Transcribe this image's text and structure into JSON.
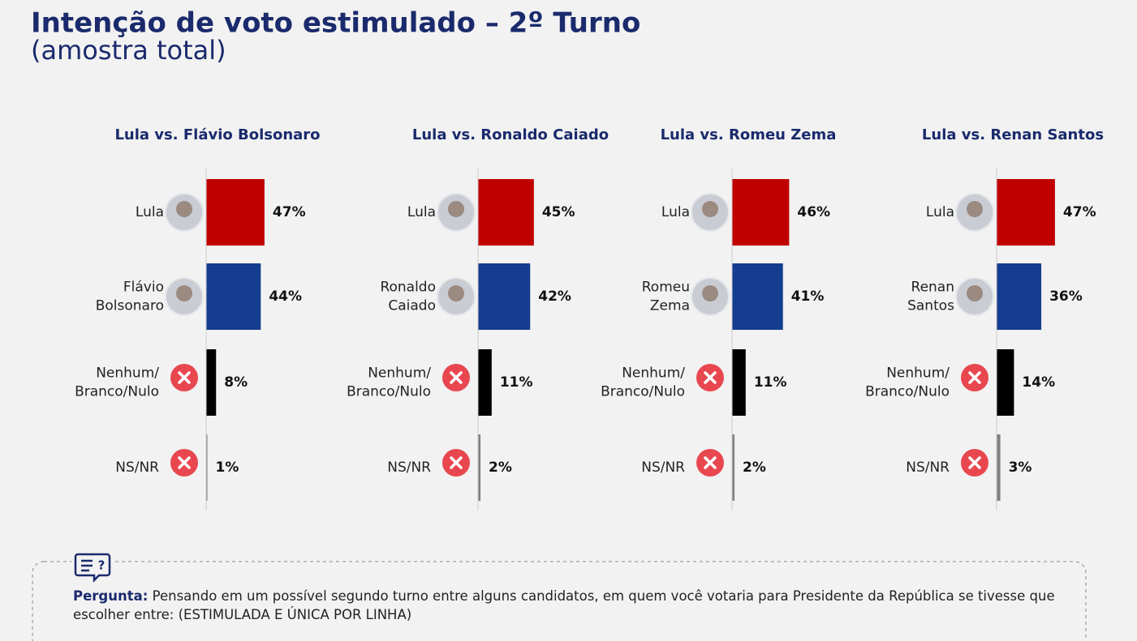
{
  "title": "Intenção de voto estimulado – 2º Turno",
  "subtitle": "(amostra total)",
  "question": {
    "label": "Pergunta:",
    "text": "Pensando em um possível segundo turno entre alguns candidatos, em quem você votaria para Presidente da República se tivesse que escolher entre: (ESTIMULADA E ÚNICA POR LINHA)"
  },
  "chart_data": [
    {
      "type": "bar",
      "orientation": "horizontal",
      "title": "Lula vs. Flávio Bolsonaro",
      "categories": [
        [
          "Lula"
        ],
        [
          "Flávio",
          "Bolsonaro"
        ],
        [
          "Nenhum/",
          "Branco/Nulo"
        ],
        [
          "NS/NR"
        ]
      ],
      "values": [
        47,
        44,
        8,
        1
      ],
      "value_labels": [
        "47%",
        "44%",
        "8%",
        "1%"
      ],
      "colors": [
        "#c00000",
        "#143d8f",
        "#000000",
        "#808080"
      ],
      "xlim": [
        0,
        100
      ]
    },
    {
      "type": "bar",
      "orientation": "horizontal",
      "title": "Lula vs. Ronaldo Caiado",
      "categories": [
        [
          "Lula"
        ],
        [
          "Ronaldo",
          "Caiado"
        ],
        [
          "Nenhum/",
          "Branco/Nulo"
        ],
        [
          "NS/NR"
        ]
      ],
      "values": [
        45,
        42,
        11,
        2
      ],
      "value_labels": [
        "45%",
        "42%",
        "11%",
        "2%"
      ],
      "colors": [
        "#c00000",
        "#143d8f",
        "#000000",
        "#808080"
      ],
      "xlim": [
        0,
        100
      ]
    },
    {
      "type": "bar",
      "orientation": "horizontal",
      "title": "Lula vs. Romeu Zema",
      "categories": [
        [
          "Lula"
        ],
        [
          "Romeu",
          "Zema"
        ],
        [
          "Nenhum/",
          "Branco/Nulo"
        ],
        [
          "NS/NR"
        ]
      ],
      "values": [
        46,
        41,
        11,
        2
      ],
      "value_labels": [
        "46%",
        "41%",
        "11%",
        "2%"
      ],
      "colors": [
        "#c00000",
        "#143d8f",
        "#000000",
        "#808080"
      ],
      "xlim": [
        0,
        100
      ]
    },
    {
      "type": "bar",
      "orientation": "horizontal",
      "title": "Lula vs. Renan Santos",
      "categories": [
        [
          "Lula"
        ],
        [
          "Renan",
          "Santos"
        ],
        [
          "Nenhum/",
          "Branco/Nulo"
        ],
        [
          "NS/NR"
        ]
      ],
      "values": [
        47,
        36,
        14,
        3
      ],
      "value_labels": [
        "47%",
        "36%",
        "14%",
        "3%"
      ],
      "colors": [
        "#c00000",
        "#143d8f",
        "#000000",
        "#808080"
      ],
      "xlim": [
        0,
        100
      ]
    }
  ]
}
